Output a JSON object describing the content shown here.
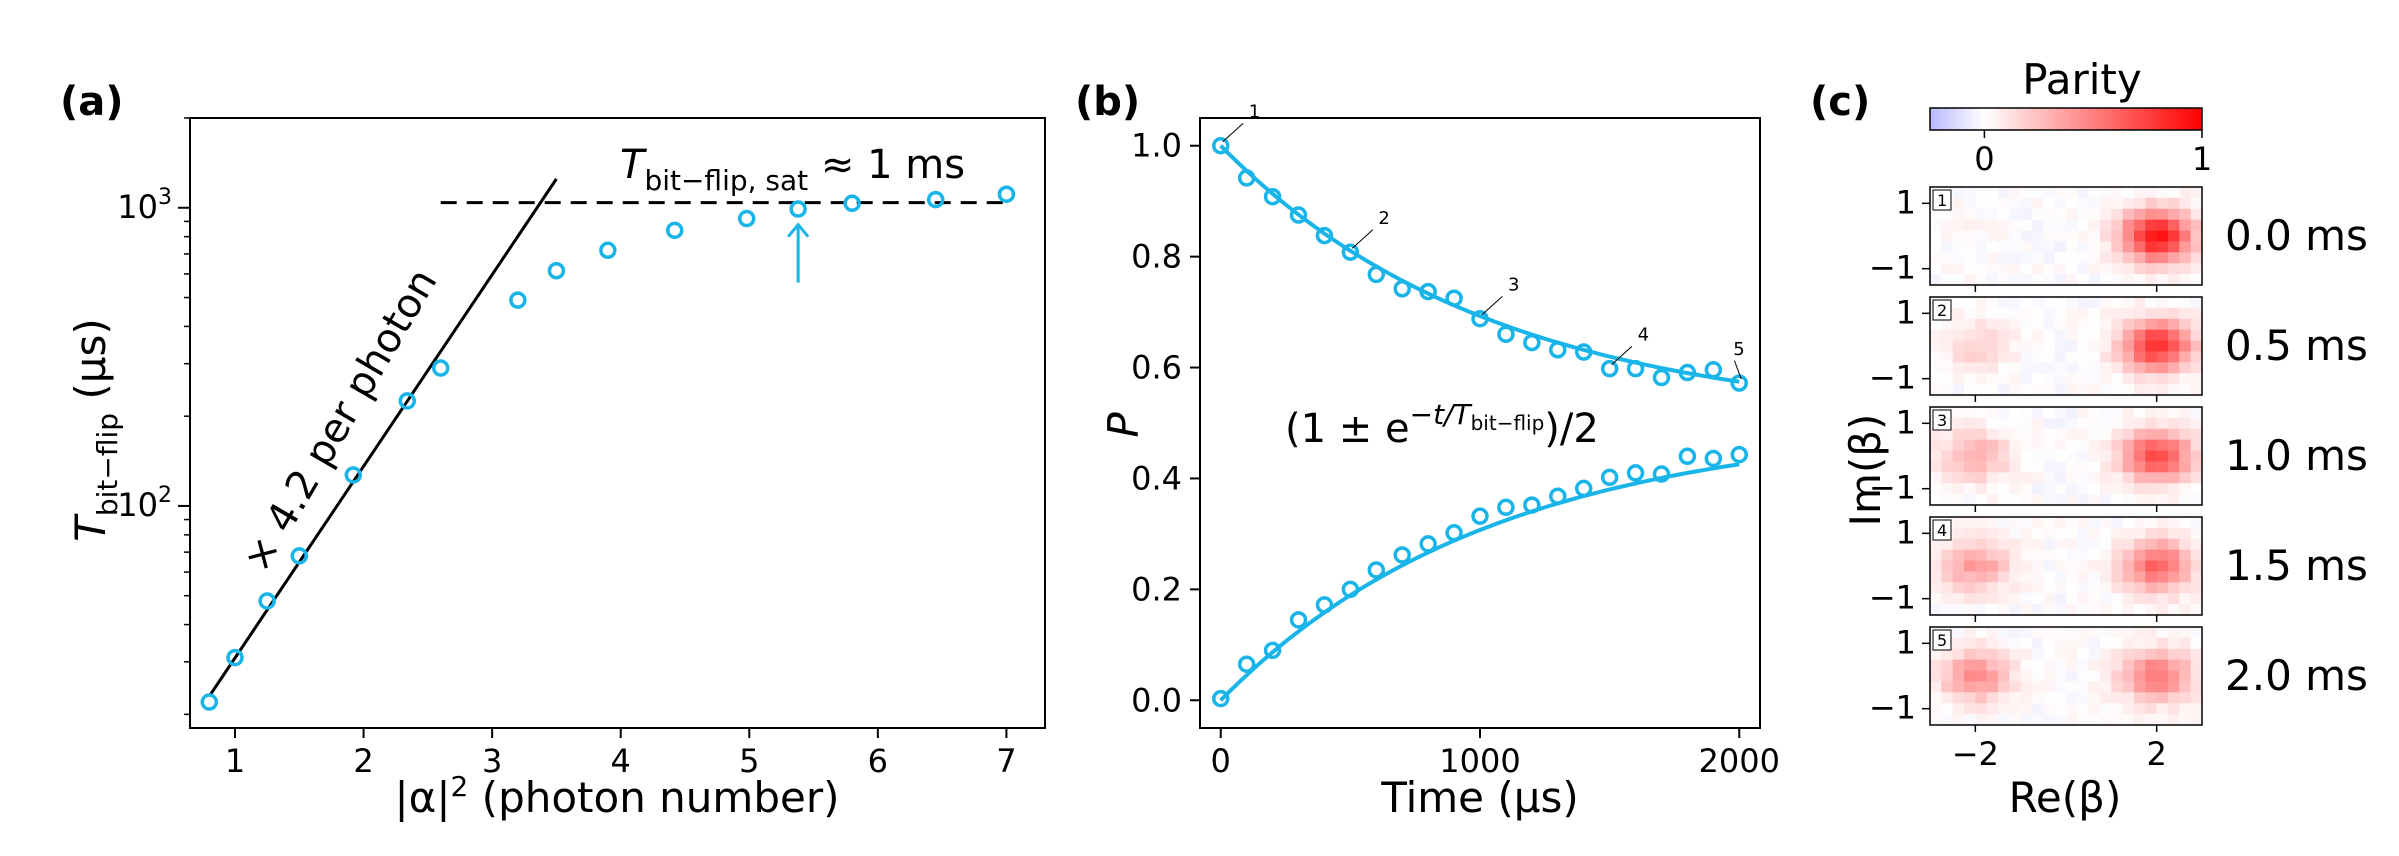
{
  "colors": {
    "accent": "#1ab5e8",
    "parity_hot": "#ff0000",
    "parity_cold": "#b8b8ff"
  },
  "panels": [
    "(a)",
    "(b)",
    "(c)"
  ],
  "chart_data": [
    {
      "type": "scatter",
      "panel": "(a)",
      "xlabel_pre": "|α|",
      "xlabel_sup": "2",
      "xlabel_post": " (photon number)",
      "ylabel_main": "T",
      "ylabel_sub": "bit−flip",
      "ylabel_unit": " (μs)",
      "yscale": "log",
      "xlim": [
        0.65,
        7.3
      ],
      "ylim": [
        18,
        2000
      ],
      "xticks": [
        1,
        2,
        3,
        4,
        5,
        6,
        7
      ],
      "yticks": [
        {
          "value": 100,
          "base": "10",
          "exp": "2"
        },
        {
          "value": 1000,
          "base": "10",
          "exp": "3"
        }
      ],
      "series": [
        {
          "x": [
            0.8,
            1.0,
            1.25,
            1.5,
            1.92,
            2.34,
            2.6,
            3.2,
            3.5,
            3.9,
            4.42,
            4.98,
            5.38,
            5.8,
            6.45,
            7.0
          ],
          "y": [
            22,
            31,
            48,
            68,
            127,
            225,
            290,
            490,
            615,
            720,
            840,
            920,
            990,
            1035,
            1065,
            1110
          ]
        }
      ],
      "fit_line": {
        "x": [
          0.8,
          3.5
        ],
        "y": [
          23,
          1250
        ]
      },
      "saturation_line": {
        "x": [
          2.6,
          7.0
        ],
        "y": 1040
      },
      "arrow_x": 5.38,
      "annotations": {
        "slope_text": "× 4.2 per photon",
        "sat_main": "T",
        "sat_sub": "bit−flip, sat",
        "sat_post": " ≈ 1 ms"
      }
    },
    {
      "type": "scatter",
      "panel": "(b)",
      "xlabel": "Time (μs)",
      "ylabel": "P",
      "xlim": [
        -80,
        2080
      ],
      "ylim": [
        -0.05,
        1.05
      ],
      "xticks": [
        0,
        1000,
        2000
      ],
      "yticks": [
        0.0,
        0.2,
        0.4,
        0.6,
        0.8,
        1.0
      ],
      "series": [
        {
          "x": [
            0,
            100,
            200,
            300,
            400,
            500,
            600,
            700,
            800,
            900,
            1000,
            1100,
            1200,
            1300,
            1400,
            1500,
            1600,
            1700,
            1800,
            1900,
            2000
          ],
          "y": [
            1.0,
            0.942,
            0.908,
            0.875,
            0.838,
            0.808,
            0.768,
            0.742,
            0.737,
            0.725,
            0.688,
            0.66,
            0.645,
            0.632,
            0.628,
            0.598,
            0.598,
            0.582,
            0.591,
            0.596,
            0.572
          ]
        },
        {
          "x": [
            0,
            100,
            200,
            300,
            400,
            500,
            600,
            700,
            800,
            900,
            1000,
            1100,
            1200,
            1300,
            1400,
            1500,
            1600,
            1700,
            1800,
            1900,
            2000
          ],
          "y": [
            0.003,
            0.065,
            0.09,
            0.145,
            0.172,
            0.2,
            0.235,
            0.262,
            0.282,
            0.302,
            0.332,
            0.348,
            0.352,
            0.368,
            0.382,
            0.402,
            0.41,
            0.408,
            0.44,
            0.436,
            0.443
          ]
        }
      ],
      "fit": {
        "type": "exponential",
        "offset": 0.5,
        "amplitude": 0.5,
        "t_decay": 1050,
        "t_min": 0,
        "t_max": 2000
      },
      "point_labels": [
        {
          "label": "1",
          "x": 0,
          "y": 1.0
        },
        {
          "label": "2",
          "x": 500,
          "y": 0.808
        },
        {
          "label": "3",
          "x": 1000,
          "y": 0.688
        },
        {
          "label": "4",
          "x": 1500,
          "y": 0.598
        },
        {
          "label": "5",
          "x": 2000,
          "y": 0.572
        }
      ],
      "formula": {
        "pre": "(1 ± e",
        "sup": "−t/T",
        "subsup": "bit−flip",
        "post": ")/2"
      }
    },
    {
      "type": "heatmap",
      "panel": "(c)",
      "colorbar_title": "Parity",
      "colorbar_ticks": [
        "0",
        "1"
      ],
      "xlabel": "Re(β)",
      "ylabel": "Im(β)",
      "xticks": [
        "−2",
        "2"
      ],
      "yticks": [
        "1",
        "−1"
      ],
      "maps": [
        {
          "index": "1",
          "time": "0.0 ms",
          "left_blob": 0.02,
          "right_blob": 0.95
        },
        {
          "index": "2",
          "time": "0.5 ms",
          "left_blob": 0.18,
          "right_blob": 0.82
        },
        {
          "index": "3",
          "time": "1.0 ms",
          "left_blob": 0.32,
          "right_blob": 0.72
        },
        {
          "index": "4",
          "time": "1.5 ms",
          "left_blob": 0.38,
          "right_blob": 0.62
        },
        {
          "index": "5",
          "time": "2.0 ms",
          "left_blob": 0.45,
          "right_blob": 0.55
        }
      ]
    }
  ]
}
